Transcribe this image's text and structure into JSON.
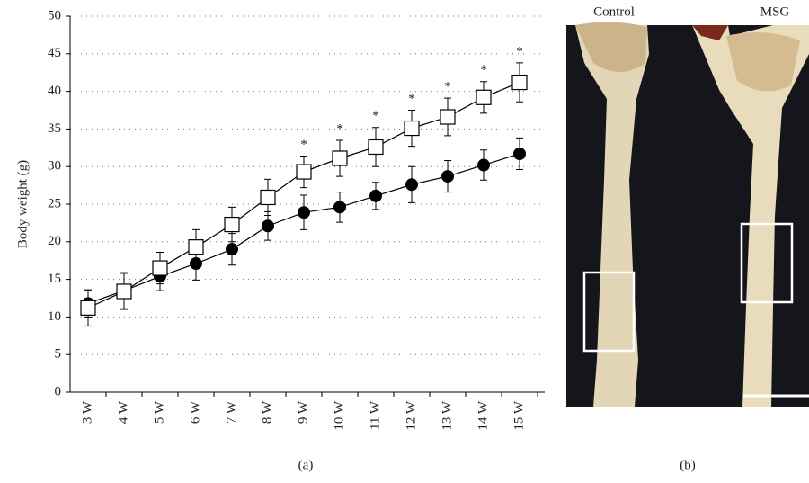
{
  "chart_data": {
    "type": "line",
    "y_label": "Body weight (g)",
    "caption": "(a)",
    "categories": [
      "3 W",
      "4 W",
      "5 W",
      "6 W",
      "7 W",
      "8 W",
      "9 W",
      "10 W",
      "11 W",
      "12 W",
      "13 W",
      "14 W",
      "15 W"
    ],
    "series": [
      {
        "marker": "circle",
        "color": "#000000",
        "values": [
          11.8,
          13.5,
          15.4,
          17.1,
          19.0,
          22.1,
          23.9,
          24.6,
          26.1,
          27.6,
          28.7,
          30.2,
          31.7
        ],
        "errors": [
          1.8,
          2.4,
          1.9,
          2.2,
          2.1,
          1.9,
          2.3,
          2.0,
          1.8,
          2.4,
          2.1,
          2.0,
          2.1
        ]
      },
      {
        "marker": "square",
        "color": "#000000",
        "values": [
          11.2,
          13.4,
          16.5,
          19.3,
          22.3,
          25.9,
          29.3,
          31.1,
          32.6,
          35.1,
          36.6,
          39.2,
          41.2
        ],
        "errors": [
          2.4,
          2.4,
          2.1,
          2.3,
          2.3,
          2.4,
          2.1,
          2.4,
          2.6,
          2.4,
          2.5,
          2.1,
          2.6
        ],
        "significance": [
          null,
          null,
          null,
          null,
          null,
          null,
          "*",
          "*",
          "*",
          "*",
          "*",
          "*",
          "*"
        ]
      }
    ],
    "ylim": [
      0,
      50
    ],
    "yticks": [
      0,
      5,
      10,
      15,
      20,
      25,
      30,
      35,
      40,
      45,
      50
    ],
    "grid": true
  },
  "panel_b": {
    "labels": [
      "Control",
      "MSG"
    ],
    "caption": "(b)"
  }
}
